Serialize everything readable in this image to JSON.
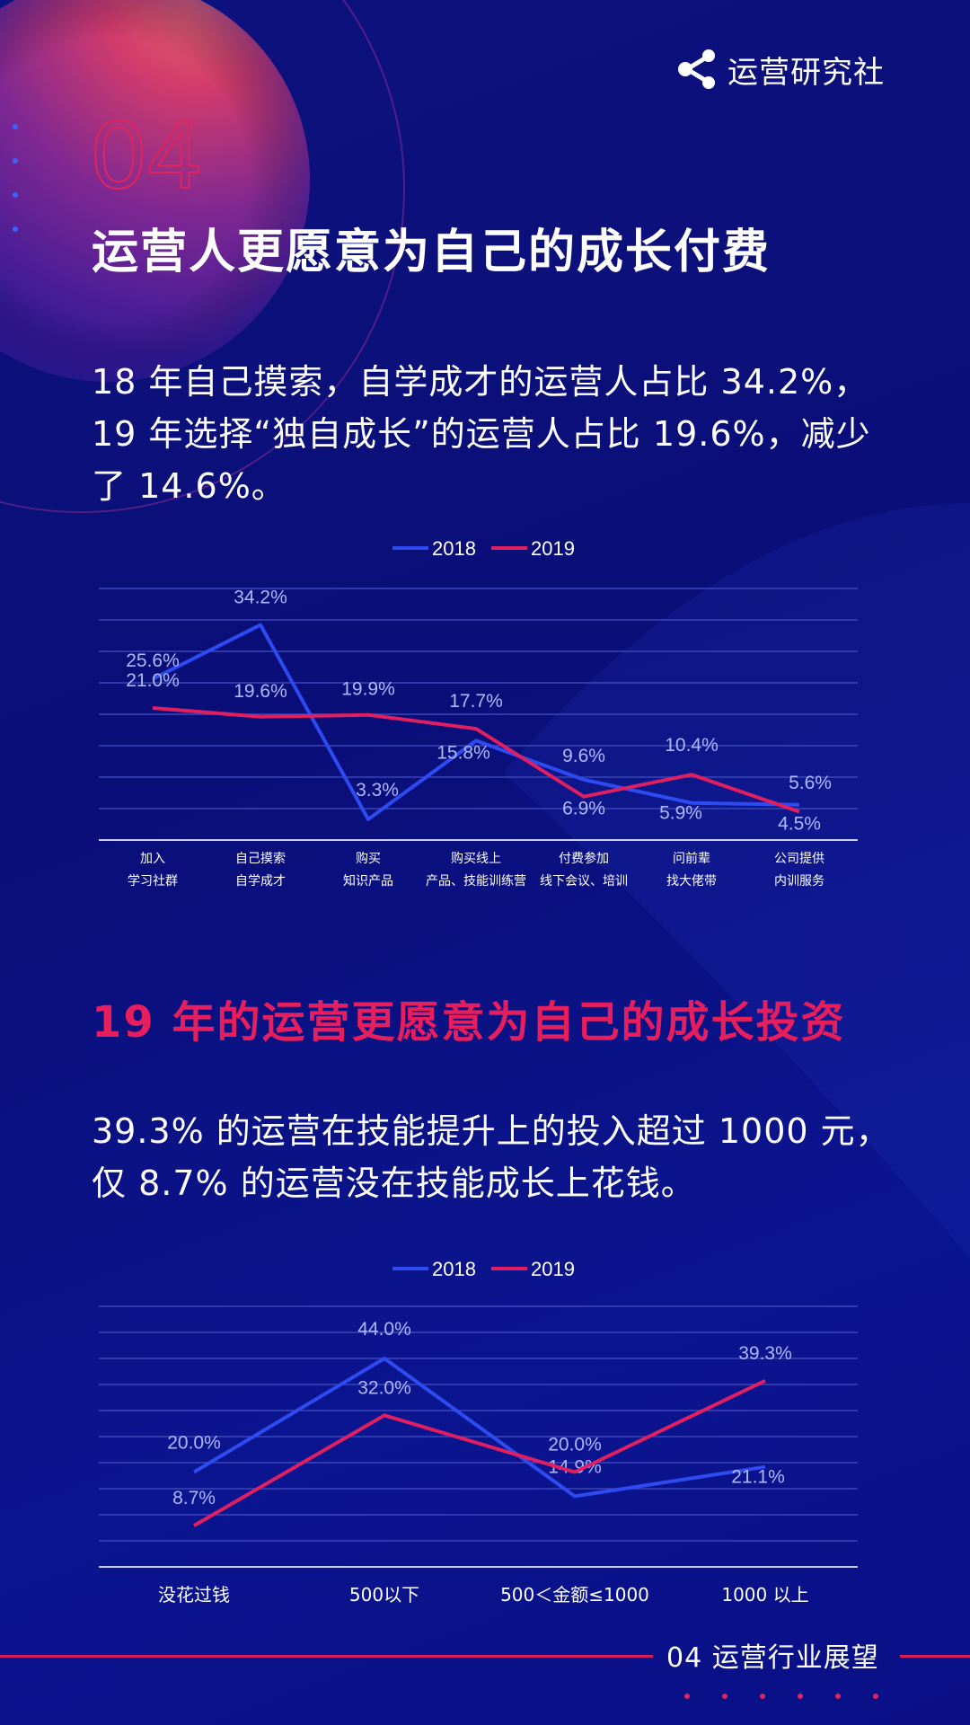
{
  "brand": {
    "name": "运营研究社",
    "icon": "share-nodes-icon"
  },
  "section": {
    "number": "04",
    "title": "运营人更愿意为自己的成长付费",
    "paragraph1": [
      "18 年自己摸索，自学成才的运营人占比 34.2%，",
      "19 年选择“独自成长”的运营人占比 19.6%，减少",
      "了 14.6%。"
    ],
    "subtitle": "19 年的运营更愿意为自己的成长投资",
    "paragraph2": [
      "39.3% 的运营在技能提升上的投入超过 1000 元，",
      "仅 8.7% 的运营没在技能成长上花钱。"
    ]
  },
  "colors": {
    "series_2018": "#2d4bf0",
    "series_2019": "#df1f5f",
    "accent": "#e61e5d",
    "background": "#0d127e"
  },
  "chart_data": [
    {
      "type": "line",
      "categories": [
        [
          "加入",
          "学习社群"
        ],
        [
          "自己摸索",
          "自学成才"
        ],
        [
          "购买",
          "知识产品"
        ],
        [
          "购买线上",
          "产品、技能训练营"
        ],
        [
          "付费参加",
          "线下会议、培训"
        ],
        [
          "问前辈",
          "找大佬带"
        ],
        [
          "公司提供",
          "内训服务"
        ]
      ],
      "series": [
        {
          "name": "2018",
          "values": [
            25.6,
            34.2,
            3.3,
            15.8,
            9.6,
            5.9,
            5.6
          ],
          "labels": [
            "25.6%",
            "34.2%",
            "3.3%",
            "15.8%",
            "9.6%",
            "5.9%",
            "5.6%"
          ],
          "color": "#2d4bf0"
        },
        {
          "name": "2019",
          "values": [
            21.0,
            19.6,
            19.9,
            17.7,
            6.9,
            10.4,
            4.5
          ],
          "labels": [
            "21.0%",
            "19.6%",
            "19.9%",
            "17.7%",
            "6.9%",
            "10.4%",
            "4.5%"
          ],
          "color": "#df1f5f"
        }
      ],
      "ylim": [
        0,
        40
      ],
      "legend": "top-center",
      "grid": true
    },
    {
      "type": "line",
      "categories": [
        [
          "没花过钱"
        ],
        [
          "500以下"
        ],
        [
          "500＜金额≤1000"
        ],
        [
          "1000 以上"
        ]
      ],
      "series": [
        {
          "name": "2018",
          "values": [
            20.0,
            44.0,
            14.9,
            21.1
          ],
          "labels": [
            "20.0%",
            "44.0%",
            "14.9%",
            "21.1%"
          ],
          "color": "#2d4bf0"
        },
        {
          "name": "2019",
          "values": [
            8.7,
            32.0,
            20.0,
            39.3
          ],
          "labels": [
            "8.7%",
            "32.0%",
            "20.0%",
            "39.3%"
          ],
          "color": "#df1f5f"
        }
      ],
      "ylim": [
        0,
        55
      ],
      "legend": "top-center",
      "grid": true
    }
  ],
  "footer": {
    "label": "04 运营行业展望"
  }
}
